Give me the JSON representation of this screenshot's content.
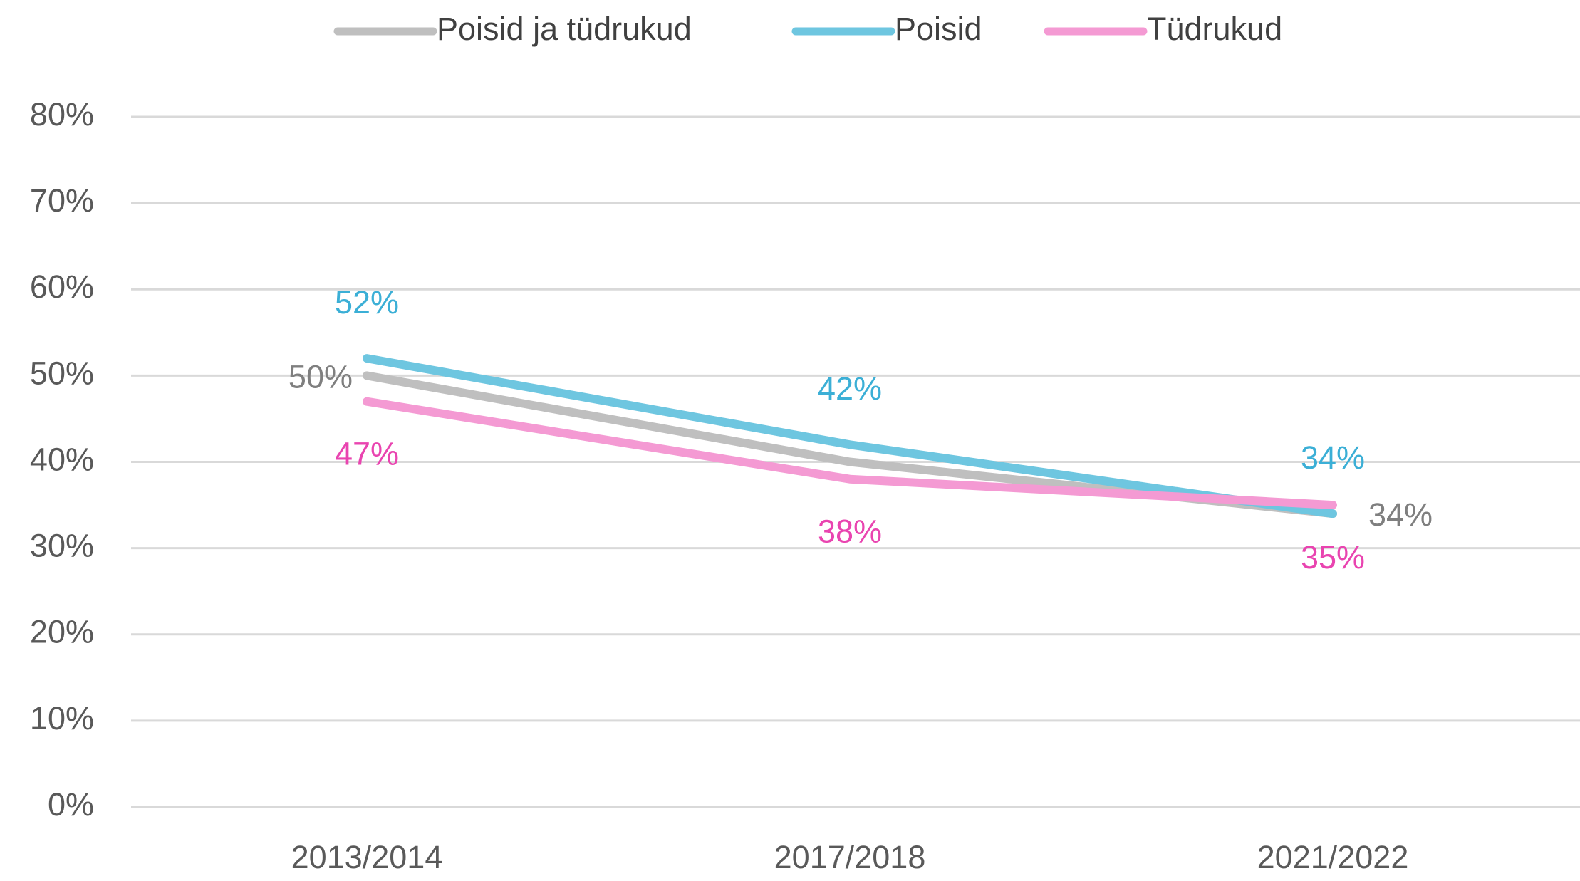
{
  "chart_data": {
    "type": "line",
    "categories": [
      "2013/2014",
      "2017/2018",
      "2021/2022"
    ],
    "series": [
      {
        "name": "Poisid ja tüdrukud",
        "color": "#bfbfbf",
        "values": [
          50,
          40,
          34
        ],
        "value_labels": [
          "50%",
          null,
          "34%"
        ],
        "label_color": "#7f7f7f"
      },
      {
        "name": "Poisid",
        "color": "#6ec6e0",
        "values": [
          52,
          42,
          34
        ],
        "value_labels": [
          "52%",
          "42%",
          "34%"
        ],
        "label_color": "#3bafd6"
      },
      {
        "name": "Tüdrukud",
        "color": "#f49ad3",
        "values": [
          47,
          38,
          35
        ],
        "value_labels": [
          "47%",
          "38%",
          "35%"
        ],
        "label_color": "#e944b0"
      }
    ],
    "ylim": [
      0,
      80
    ],
    "yticks": [
      {
        "value": 0,
        "label": "0%"
      },
      {
        "value": 10,
        "label": "10%"
      },
      {
        "value": 20,
        "label": "20%"
      },
      {
        "value": 30,
        "label": "30%"
      },
      {
        "value": 40,
        "label": "40%"
      },
      {
        "value": 50,
        "label": "50%"
      },
      {
        "value": 60,
        "label": "60%"
      },
      {
        "value": 70,
        "label": "70%"
      },
      {
        "value": 80,
        "label": "80%"
      }
    ],
    "grid": true,
    "legend": "top"
  }
}
